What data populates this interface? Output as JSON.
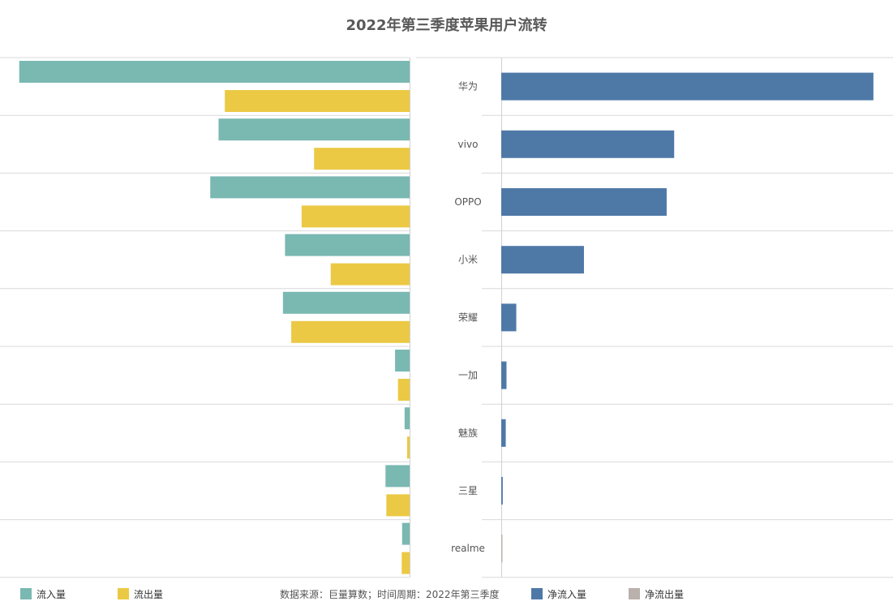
{
  "title": "2022年第三季度苹果用户流转",
  "source": "数据来源：巨量算数；时间周期：2022年第三季度",
  "legend": {
    "inflow": "流入量",
    "outflow": "流出量",
    "net_in": "净流入量",
    "net_out": "净流出量"
  },
  "colors": {
    "inflow": "#7ab8b2",
    "outflow": "#ebc944",
    "net_in": "#4e79a7",
    "net_out": "#bab0ac"
  },
  "chart_data": [
    {
      "type": "bar",
      "orientation": "horizontal-mirrored",
      "categories": [
        "华为",
        "vivo",
        "OPPO",
        "小米",
        "荣耀",
        "一加",
        "魅族",
        "三星",
        "realme"
      ],
      "series": [
        {
          "name": "流入量",
          "values": [
            94,
            46,
            48,
            30,
            30.5,
            3.5,
            1.2,
            5.8,
            1.8
          ]
        },
        {
          "name": "流出量",
          "values": [
            44.5,
            23,
            26,
            19,
            28.5,
            2.8,
            0.6,
            5.6,
            1.9
          ]
        }
      ]
    },
    {
      "type": "bar",
      "orientation": "horizontal",
      "categories": [
        "华为",
        "vivo",
        "OPPO",
        "小米",
        "荣耀",
        "一加",
        "魅族",
        "三星",
        "realme"
      ],
      "series": [
        {
          "name": "净流入量",
          "values": [
            49.5,
            23,
            22,
            11,
            2,
            0.7,
            0.6,
            0.2,
            0
          ]
        },
        {
          "name": "净流出量",
          "values": [
            0,
            0,
            0,
            0,
            0,
            0,
            0,
            0,
            0.1
          ]
        }
      ]
    }
  ]
}
